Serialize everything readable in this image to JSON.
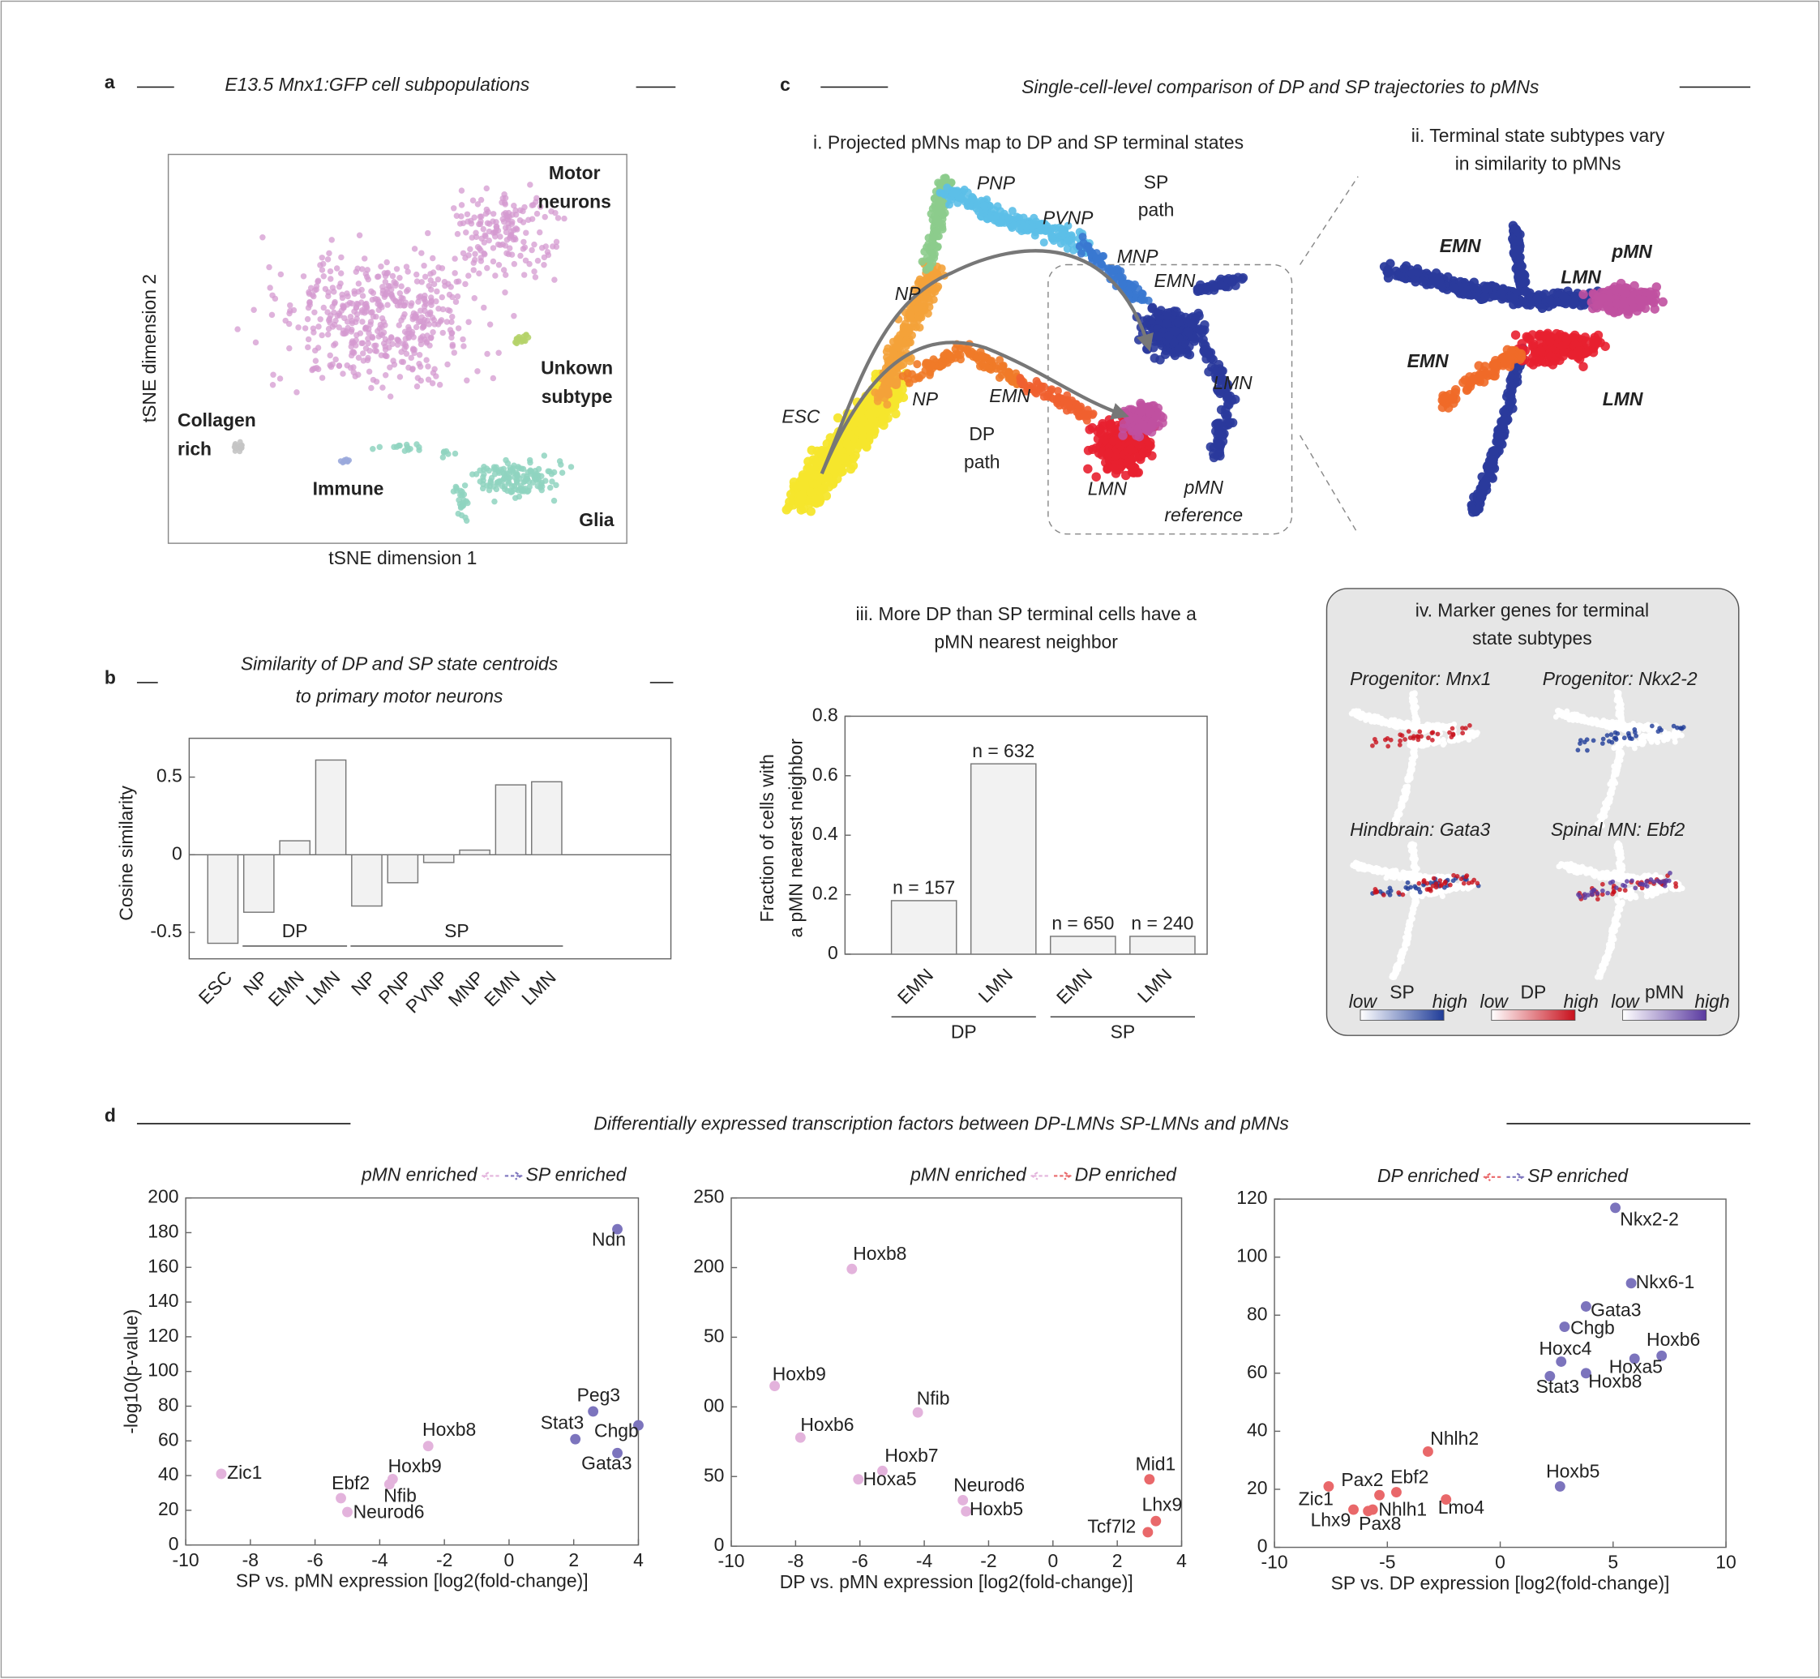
{
  "panels": {
    "a": {
      "letter": "a",
      "title": "E13.5 Mnx1:GFP cell subpopulations",
      "x_label": "tSNE dimension 1",
      "y_label": "tSNE dimension 2",
      "clusters": [
        {
          "label": [
            "Motor",
            "neurons"
          ],
          "color": "#d49ad0"
        },
        {
          "label": [
            "Unkown",
            "subtype"
          ],
          "color": "#b5d36a"
        },
        {
          "label": [
            "Collagen",
            "rich"
          ],
          "color": "#c4c4c4"
        },
        {
          "label": [
            "Immune"
          ],
          "color": "#9aa8dc"
        },
        {
          "label": [
            "Glia"
          ],
          "color": "#8fd3bf"
        }
      ]
    },
    "b": {
      "letter": "b"
    },
    "c": {
      "letter": "c",
      "title": "Single-cell-level comparison of DP and SP trajectories to pMNs",
      "i": {
        "title": "i. Projected pMNs map to DP and SP terminal states",
        "labels": [
          {
            "text": [
              "PNP"
            ],
            "color": "#5cbfe8"
          },
          {
            "text": [
              "PVNP"
            ],
            "color": "#3a9fdf"
          },
          {
            "text": [
              "MNP"
            ],
            "color": "#2a4fa8"
          },
          {
            "text": [
              "EMN"
            ],
            "color": "#2a3a9c"
          },
          {
            "text": [
              "LMN"
            ],
            "color": "#2a3a9c"
          },
          {
            "text": [
              "NP"
            ],
            "color": "#8ccc8c"
          },
          {
            "text": [
              "NP"
            ],
            "color": "#f0a020"
          },
          {
            "text": [
              "ESC"
            ],
            "color": "#e8c820"
          },
          {
            "text": [
              "EMN"
            ],
            "color": "#e86020"
          },
          {
            "text": [
              "LMN"
            ],
            "color": "#e02020"
          },
          {
            "text": [
              "pMN",
              "reference"
            ],
            "color": "#c040a0"
          },
          {
            "text": [
              "SP",
              "path"
            ],
            "color": "#777777"
          },
          {
            "text": [
              "DP",
              "path"
            ],
            "color": "#777777"
          }
        ]
      },
      "ii": {
        "title": [
          "ii. Terminal state subtypes vary",
          "in similarity to pMNs"
        ],
        "labels": [
          {
            "text": [
              "EMN"
            ],
            "color": "#2a3a9c"
          },
          {
            "text": [
              "LMN"
            ],
            "color": "#2a3a9c"
          },
          {
            "text": [
              "pMN"
            ],
            "color": "#c040a0"
          },
          {
            "text": [
              "EMN"
            ],
            "color": "#e86020"
          },
          {
            "text": [
              "LMN"
            ],
            "color": "#e02020"
          }
        ]
      },
      "iv": {
        "title": [
          "iv. Marker genes for terminal",
          "state subtypes"
        ],
        "subplots": [
          "Progenitor: Mnx1",
          "Progenitor: Nkx2-2",
          "Hindbrain: Gata3",
          "Spinal MN: Ebf2"
        ],
        "colorbars": [
          {
            "low": "low",
            "name": "SP",
            "high": "high",
            "color": "#1f3c98"
          },
          {
            "low": "low",
            "name": "DP",
            "high": "high",
            "color": "#c8101c"
          },
          {
            "low": "low",
            "name": "pMN",
            "high": "high",
            "color": "#5a3aa0"
          }
        ]
      }
    },
    "d": {
      "letter": "d",
      "title": "Differentially expressed transcription factors between DP-LMNs SP-LMNs and pMNs"
    }
  },
  "chart_data": [
    {
      "type": "bar",
      "title": [
        "Similarity of DP and SP state centroids",
        "to primary motor neurons"
      ],
      "y_label": [
        "Cosine similarity"
      ],
      "categories": [
        "ESC",
        "NP",
        "EMN",
        "LMN",
        "NP",
        "PNP",
        "PVNP",
        "MNP",
        "EMN",
        "LMN"
      ],
      "category_groups": [
        null,
        "DP",
        "DP",
        "DP",
        "SP",
        "SP",
        "SP",
        "SP",
        "SP",
        "SP"
      ],
      "values": [
        -0.57,
        -0.37,
        0.09,
        0.61,
        -0.33,
        -0.18,
        -0.05,
        0.03,
        0.45,
        0.47
      ],
      "color": "#f2f2f2",
      "ylim": [
        -0.67,
        0.75
      ],
      "yticks": [
        -0.5,
        0,
        0.5
      ]
    },
    {
      "type": "bar",
      "title": [
        "iii. More DP than SP terminal cells have a",
        "pMN nearest neighbor"
      ],
      "y_label": [
        "Fraction of cells with",
        "a pMN nearest neighbor"
      ],
      "categories": [
        "EMN",
        "LMN",
        "EMN",
        "LMN"
      ],
      "category_groups": [
        "DP",
        "DP",
        "SP",
        "SP"
      ],
      "values": [
        0.18,
        0.64,
        0.06,
        0.06
      ],
      "annotations": [
        "n = 157",
        "n = 632",
        "n = 650",
        "n = 240"
      ],
      "color": "#f2f2f2",
      "ylim": [
        0,
        0.8
      ],
      "yticks": [
        0,
        0.2,
        0.4,
        0.6,
        0.8
      ]
    },
    {
      "type": "scatter",
      "x_label": "SP vs. pMN expression [log2(fold-change)]",
      "y_label": "-log10(p-value)",
      "xlim": [
        -10,
        4
      ],
      "xticks": [
        -10,
        -8,
        -6,
        -4,
        -2,
        0,
        2,
        4
      ],
      "ylim": [
        0,
        200
      ],
      "yticks": [
        0,
        20,
        40,
        60,
        80,
        100,
        120,
        140,
        160,
        180,
        200
      ],
      "series": [
        {
          "name": "pMN enriched",
          "color": "#e3b3dc",
          "labels": [
            "Zic1",
            "Ebf2",
            "Neurod6",
            "Nfib",
            "Hoxb9",
            "Hoxb8"
          ],
          "x": [
            -8.9,
            -5.2,
            -5.0,
            -3.7,
            -3.6,
            -2.5
          ],
          "values": [
            41,
            27,
            19,
            35,
            38,
            57
          ]
        },
        {
          "name": "SP enriched",
          "color": "#7c74bd",
          "labels": [
            "Stat3",
            "Peg3",
            "Chgb",
            "Gata3",
            "Ndn"
          ],
          "x": [
            2.05,
            2.6,
            4.0,
            3.35,
            3.35
          ],
          "values": [
            61,
            77,
            69,
            53,
            182
          ]
        }
      ]
    },
    {
      "type": "scatter",
      "x_label": "DP vs. pMN expression [log2(fold-change)]",
      "xlim": [
        -10,
        4
      ],
      "xticks": [
        -10,
        -8,
        -6,
        -4,
        -2,
        0,
        2,
        4
      ],
      "ylim": [
        0,
        250
      ],
      "yticks": [
        0,
        50,
        {
          "value": 100,
          "label": "00"
        },
        {
          "value": 150,
          "label": "50"
        },
        200,
        250
      ],
      "series": [
        {
          "name": "pMN enriched",
          "color": "#e3b3dc",
          "labels": [
            "Hoxb8",
            "Hoxb9",
            "Hoxb6",
            "Nfib",
            "Hoxb7",
            "Hoxa5",
            "Neurod6",
            "Hoxb5"
          ],
          "x": [
            -6.25,
            -8.65,
            -7.85,
            -4.2,
            -5.3,
            -6.05,
            -2.8,
            -2.7
          ],
          "values": [
            199,
            115,
            78,
            96,
            54,
            48,
            33,
            25
          ]
        },
        {
          "name": "DP enriched",
          "color": "#e9686a",
          "labels": [
            "Mid1",
            "Lhx9",
            "Tcf7l2"
          ],
          "x": [
            3.0,
            3.2,
            2.95
          ],
          "values": [
            48,
            18,
            10
          ]
        }
      ]
    },
    {
      "type": "scatter",
      "x_label": "SP vs. DP expression [log2(fold-change)]",
      "xlim": [
        -10,
        10
      ],
      "xticks": [
        -10,
        -5,
        0,
        5,
        10
      ],
      "ylim": [
        0,
        120
      ],
      "yticks": [
        0,
        20,
        40,
        60,
        80,
        100,
        120
      ],
      "series": [
        {
          "name": "DP enriched",
          "color": "#e9686a",
          "labels": [
            "Nhlh2",
            "Zic1",
            "Pax2",
            "Ebf2",
            "Lmo4",
            "Lhx9",
            "Pax8",
            "Nhlh1"
          ],
          "x": [
            -3.2,
            -7.6,
            -5.35,
            -4.6,
            -2.4,
            -6.5,
            -5.85,
            -5.65
          ],
          "values": [
            33,
            21,
            18,
            19,
            16.5,
            13,
            12.5,
            13
          ]
        },
        {
          "name": "SP enriched",
          "color": "#7c74bd",
          "labels": [
            "Nkx2-2",
            "Nkx6-1",
            "Gata3",
            "Chgb",
            "Hoxc4",
            "Hoxb6",
            "Hoxa5",
            "Stat3",
            "Hoxb8",
            "Hoxb5"
          ],
          "x": [
            5.1,
            5.8,
            3.8,
            2.85,
            2.7,
            7.15,
            5.95,
            2.2,
            3.8,
            2.65
          ],
          "values": [
            117,
            91,
            83,
            76,
            64,
            66,
            65,
            59,
            60,
            21
          ]
        }
      ]
    }
  ]
}
